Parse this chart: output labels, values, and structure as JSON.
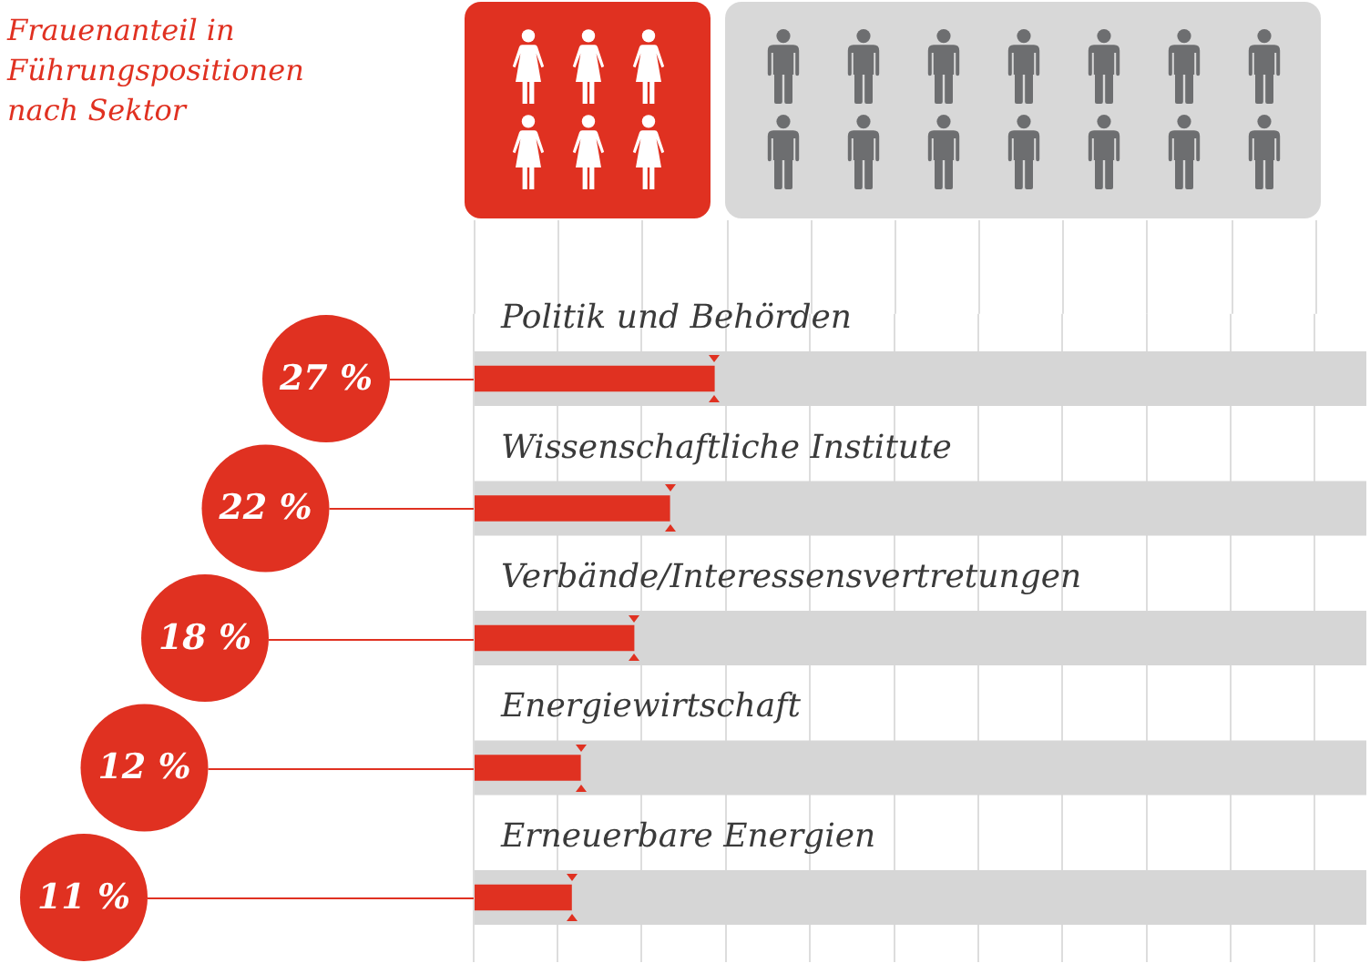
{
  "chart_data": {
    "type": "bar",
    "orientation": "horizontal",
    "title": "Frauenanteil in Führungspositionen nach Sektor",
    "categories": [
      "Politik und Behörden",
      "Wissenschaftliche Institute",
      "Verbände/Interessensvertretungen",
      "Energiewirtschaft",
      "Erneuerbare Energien"
    ],
    "series": [
      {
        "color": "#e03121",
        "values": [
          27,
          22,
          18,
          12,
          11
        ],
        "value_labels": [
          "27 %",
          "22 %",
          "18 %",
          "12 %",
          "11 %"
        ]
      },
      {
        "color": "#d6d6d6",
        "values": [
          100,
          100,
          100,
          100,
          100
        ]
      }
    ],
    "xlim": [
      0,
      100
    ],
    "xticks": [
      {
        "value": 0,
        "label": null
      },
      {
        "value": 9.4,
        "label": null
      },
      {
        "value": 18.8,
        "label": null
      },
      {
        "value": 28.3,
        "label": null
      },
      {
        "value": 37.7,
        "label": null
      },
      {
        "value": 47.1,
        "label": null
      },
      {
        "value": 56.5,
        "label": null
      },
      {
        "value": 65.9,
        "label": null
      },
      {
        "value": 75.4,
        "label": null
      },
      {
        "value": 84.8,
        "label": null
      },
      {
        "value": 94.2,
        "label": null
      }
    ],
    "grid": "x",
    "tick_labels": "y"
  }
}
